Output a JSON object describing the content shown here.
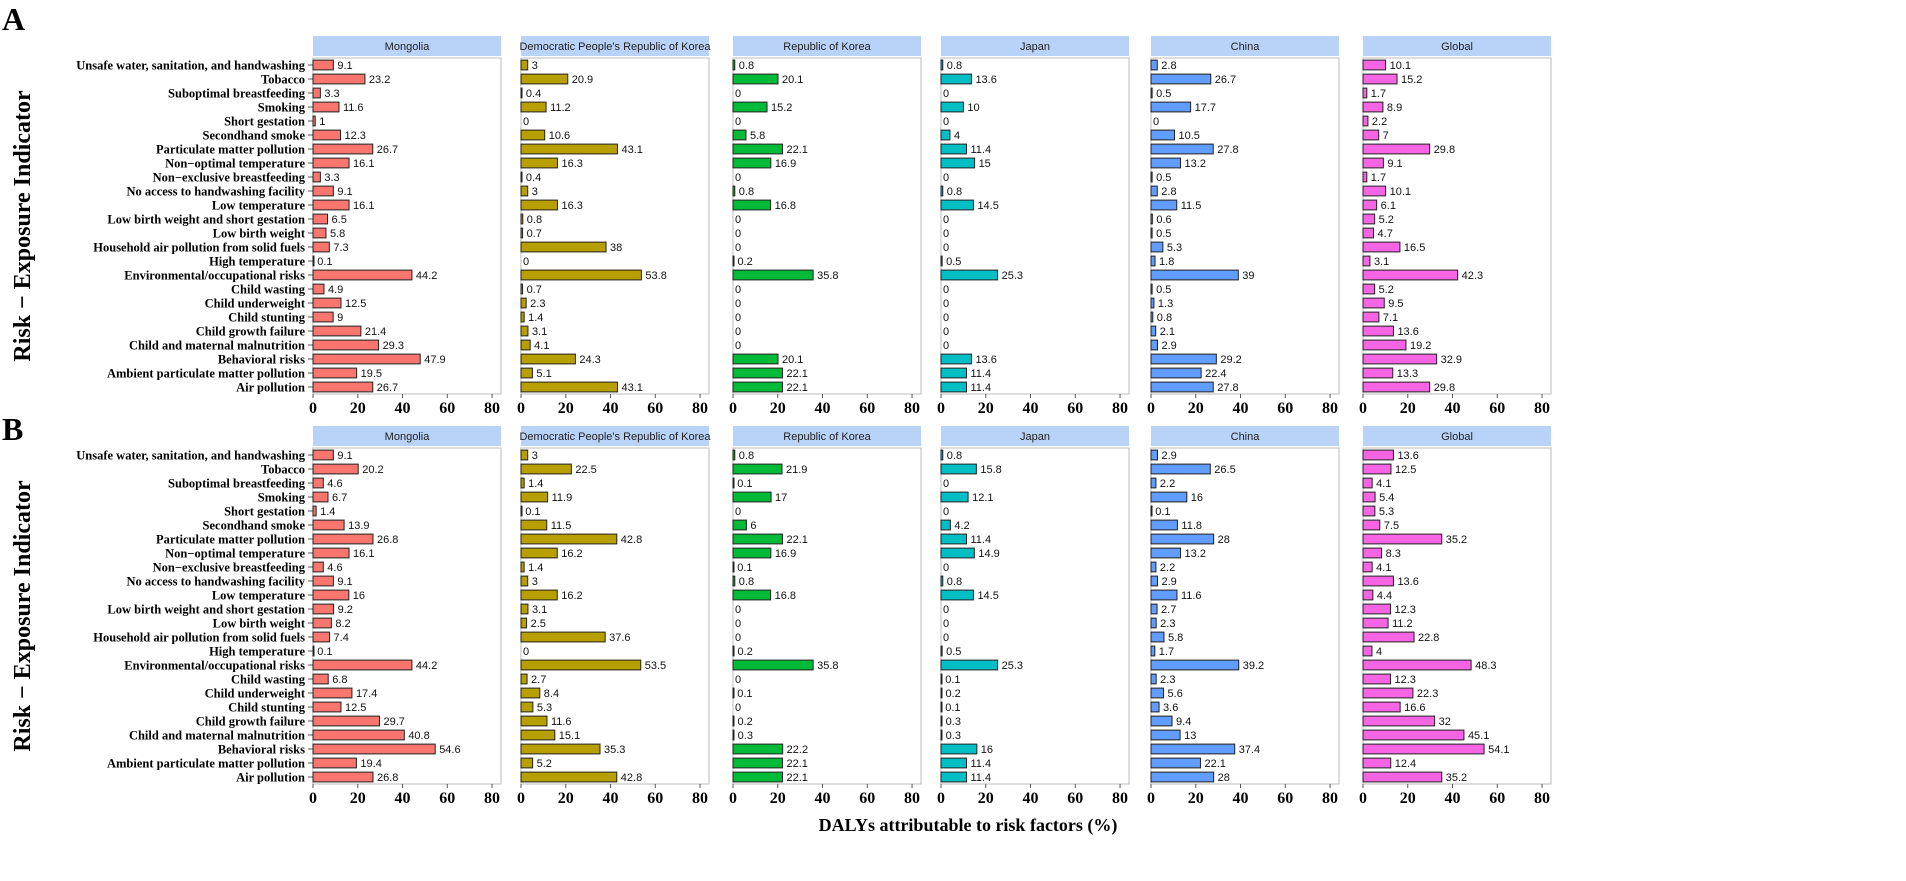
{
  "chart_data": [
    {
      "type": "bar",
      "panel_label": "A",
      "orientation": "horizontal",
      "ylabel": "Risk − Exposure Indicator",
      "xlabel": "",
      "xlim": [
        0,
        84
      ],
      "xticks": [
        0,
        20,
        40,
        60,
        80
      ],
      "categories": [
        "Unsafe water, sanitation, and handwashing",
        "Tobacco",
        "Suboptimal breastfeeding",
        "Smoking",
        "Short gestation",
        "Secondhand smoke",
        "Particulate matter pollution",
        "Non−optimal temperature",
        "Non−exclusive breastfeeding",
        "No access to handwashing facility",
        "Low temperature",
        "Low birth weight and short gestation",
        "Low birth weight",
        "Household air pollution from solid fuels",
        "High temperature",
        "Environmental/occupational risks",
        "Child wasting",
        "Child underweight",
        "Child stunting",
        "Child growth failure",
        "Child and maternal malnutrition",
        "Behavioral risks",
        "Ambient particulate matter pollution",
        "Air pollution"
      ],
      "series": [
        {
          "name": "Mongolia",
          "color": "#f8766d",
          "values": [
            9.1,
            23.2,
            3.3,
            11.6,
            1,
            12.3,
            26.7,
            16.1,
            3.3,
            9.1,
            16.1,
            6.5,
            5.8,
            7.3,
            0.1,
            44.2,
            4.9,
            12.5,
            9,
            21.4,
            29.3,
            47.9,
            19.5,
            26.7
          ]
        },
        {
          "name": "Democratic People's Republic of Korea",
          "color": "#b79f00",
          "values": [
            3,
            20.9,
            0.4,
            11.2,
            0,
            10.6,
            43.1,
            16.3,
            0.4,
            3,
            16.3,
            0.8,
            0.7,
            38,
            0,
            53.8,
            0.7,
            2.3,
            1.4,
            3.1,
            4.1,
            24.3,
            5.1,
            43.1
          ]
        },
        {
          "name": "Republic of Korea",
          "color": "#00ba38",
          "values": [
            0.8,
            20.1,
            0,
            15.2,
            0,
            5.8,
            22.1,
            16.9,
            0,
            0.8,
            16.8,
            0,
            0,
            0,
            0.2,
            35.8,
            0,
            0,
            0,
            0,
            0,
            20.1,
            22.1,
            22.1
          ]
        },
        {
          "name": "Japan",
          "color": "#00bfc4",
          "values": [
            0.8,
            13.6,
            0,
            10,
            0,
            4,
            11.4,
            15,
            0,
            0.8,
            14.5,
            0,
            0,
            0,
            0.5,
            25.3,
            0,
            0,
            0,
            0,
            0,
            13.6,
            11.4,
            11.4
          ]
        },
        {
          "name": "China",
          "color": "#619cff",
          "values": [
            2.8,
            26.7,
            0.5,
            17.7,
            0,
            10.5,
            27.8,
            13.2,
            0.5,
            2.8,
            11.5,
            0.6,
            0.5,
            5.3,
            1.8,
            39,
            0.5,
            1.3,
            0.8,
            2.1,
            2.9,
            29.2,
            22.4,
            27.8
          ]
        },
        {
          "name": "Global",
          "color": "#f564e3",
          "values": [
            10.1,
            15.2,
            1.7,
            8.9,
            2.2,
            7,
            29.8,
            9.1,
            1.7,
            10.1,
            6.1,
            5.2,
            4.7,
            16.5,
            3.1,
            42.3,
            5.2,
            9.5,
            7.1,
            13.6,
            19.2,
            32.9,
            13.3,
            29.8
          ]
        }
      ]
    },
    {
      "type": "bar",
      "panel_label": "B",
      "orientation": "horizontal",
      "ylabel": "Risk − Exposure Indicator",
      "xlabel": "DALYs attributable to risk factors (%)",
      "xlim": [
        0,
        84
      ],
      "xticks": [
        0,
        20,
        40,
        60,
        80
      ],
      "categories": [
        "Unsafe water, sanitation, and handwashing",
        "Tobacco",
        "Suboptimal breastfeeding",
        "Smoking",
        "Short gestation",
        "Secondhand smoke",
        "Particulate matter pollution",
        "Non−optimal temperature",
        "Non−exclusive breastfeeding",
        "No access to handwashing facility",
        "Low temperature",
        "Low birth weight and short gestation",
        "Low birth weight",
        "Household air pollution from solid fuels",
        "High temperature",
        "Environmental/occupational risks",
        "Child wasting",
        "Child underweight",
        "Child stunting",
        "Child growth failure",
        "Child and maternal malnutrition",
        "Behavioral risks",
        "Ambient particulate matter pollution",
        "Air pollution"
      ],
      "series": [
        {
          "name": "Mongolia",
          "color": "#f8766d",
          "values": [
            9.1,
            20.2,
            4.6,
            6.7,
            1.4,
            13.9,
            26.8,
            16.1,
            4.6,
            9.1,
            16,
            9.2,
            8.2,
            7.4,
            0.1,
            44.2,
            6.8,
            17.4,
            12.5,
            29.7,
            40.8,
            54.6,
            19.4,
            26.8
          ]
        },
        {
          "name": "Democratic People's Republic of Korea",
          "color": "#b79f00",
          "values": [
            3,
            22.5,
            1.4,
            11.9,
            0.1,
            11.5,
            42.8,
            16.2,
            1.4,
            3,
            16.2,
            3.1,
            2.5,
            37.6,
            0,
            53.5,
            2.7,
            8.4,
            5.3,
            11.6,
            15.1,
            35.3,
            5.2,
            42.8
          ]
        },
        {
          "name": "Republic of Korea",
          "color": "#00ba38",
          "values": [
            0.8,
            21.9,
            0.1,
            17,
            0,
            6,
            22.1,
            16.9,
            0.1,
            0.8,
            16.8,
            0,
            0,
            0,
            0.2,
            35.8,
            0,
            0.1,
            0,
            0.2,
            0.3,
            22.2,
            22.1,
            22.1
          ]
        },
        {
          "name": "Japan",
          "color": "#00bfc4",
          "values": [
            0.8,
            15.8,
            0,
            12.1,
            0,
            4.2,
            11.4,
            14.9,
            0,
            0.8,
            14.5,
            0,
            0,
            0,
            0.5,
            25.3,
            0.1,
            0.2,
            0.1,
            0.3,
            0.3,
            16,
            11.4,
            11.4
          ]
        },
        {
          "name": "China",
          "color": "#619cff",
          "values": [
            2.9,
            26.5,
            2.2,
            16,
            0.1,
            11.8,
            28,
            13.2,
            2.2,
            2.9,
            11.6,
            2.7,
            2.3,
            5.8,
            1.7,
            39.2,
            2.3,
            5.6,
            3.6,
            9.4,
            13,
            37.4,
            22.1,
            28
          ]
        },
        {
          "name": "Global",
          "color": "#f564e3",
          "values": [
            13.6,
            12.5,
            4.1,
            5.4,
            5.3,
            7.5,
            35.2,
            8.3,
            4.1,
            13.6,
            4.4,
            12.3,
            11.2,
            22.8,
            4,
            48.3,
            12.3,
            22.3,
            16.6,
            32,
            45.1,
            54.1,
            12.4,
            35.2
          ]
        }
      ]
    }
  ],
  "strip_color": "#b9d3f8"
}
